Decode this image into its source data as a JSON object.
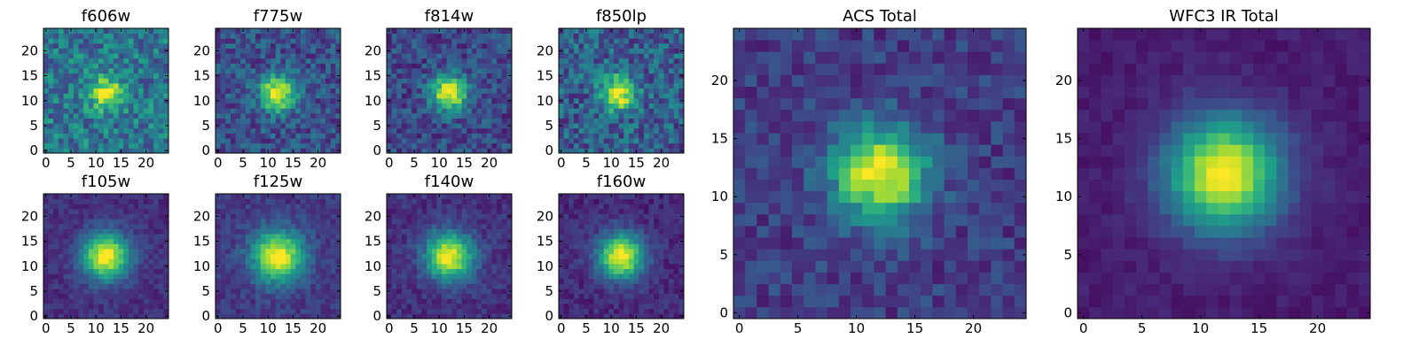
{
  "figure": {
    "description_free": true,
    "colormap": "viridis",
    "colormap_stops": [
      "#440154",
      "#482878",
      "#3e4989",
      "#31688e",
      "#26828e",
      "#1f9e89",
      "#35b779",
      "#6ece58",
      "#b5de2b",
      "#fde725"
    ]
  },
  "chart_data": [
    {
      "type": "heatmap",
      "title": "f606w",
      "grid_size": 25,
      "xlim": [
        0,
        24
      ],
      "ylim": [
        0,
        24
      ],
      "xticks": [
        "0",
        "5",
        "10",
        "15",
        "20"
      ],
      "yticks": [
        "0",
        "5",
        "10",
        "15",
        "20"
      ],
      "peak": [
        12,
        11.5
      ],
      "sigma": 2.3,
      "background": 0.4,
      "amplitude": 0.6,
      "noise": 0.2,
      "seed": 11
    },
    {
      "type": "heatmap",
      "title": "f775w",
      "grid_size": 25,
      "xlim": [
        0,
        24
      ],
      "ylim": [
        0,
        24
      ],
      "xticks": [
        "0",
        "5",
        "10",
        "15",
        "20"
      ],
      "yticks": [
        "0",
        "5",
        "10",
        "15",
        "20"
      ],
      "peak": [
        12,
        11.5
      ],
      "sigma": 2.5,
      "background": 0.25,
      "amplitude": 0.75,
      "noise": 0.16,
      "seed": 23
    },
    {
      "type": "heatmap",
      "title": "f814w",
      "grid_size": 25,
      "xlim": [
        0,
        24
      ],
      "ylim": [
        0,
        24
      ],
      "xticks": [
        "0",
        "5",
        "10",
        "15",
        "20"
      ],
      "yticks": [
        "0",
        "5",
        "10",
        "15",
        "20"
      ],
      "peak": [
        12,
        11.5
      ],
      "sigma": 2.5,
      "background": 0.22,
      "amplitude": 0.78,
      "noise": 0.15,
      "seed": 37
    },
    {
      "type": "heatmap",
      "title": "f850lp",
      "grid_size": 25,
      "xlim": [
        0,
        24
      ],
      "ylim": [
        0,
        24
      ],
      "xticks": [
        "0",
        "5",
        "10",
        "15",
        "20"
      ],
      "yticks": [
        "0",
        "5",
        "10",
        "15",
        "20"
      ],
      "peak": [
        11.5,
        11.5
      ],
      "sigma": 2.4,
      "background": 0.3,
      "amplitude": 0.7,
      "noise": 0.2,
      "seed": 41
    },
    {
      "type": "heatmap",
      "title": "f105w",
      "grid_size": 25,
      "xlim": [
        0,
        24
      ],
      "ylim": [
        0,
        24
      ],
      "xticks": [
        "0",
        "5",
        "10",
        "15",
        "20"
      ],
      "yticks": [
        "0",
        "5",
        "10",
        "15",
        "20"
      ],
      "peak": [
        12,
        12
      ],
      "sigma": 3.3,
      "background": 0.14,
      "amplitude": 0.86,
      "noise": 0.07,
      "seed": 53
    },
    {
      "type": "heatmap",
      "title": "f125w",
      "grid_size": 25,
      "xlim": [
        0,
        24
      ],
      "ylim": [
        0,
        24
      ],
      "xticks": [
        "0",
        "5",
        "10",
        "15",
        "20"
      ],
      "yticks": [
        "0",
        "5",
        "10",
        "15",
        "20"
      ],
      "peak": [
        12,
        12
      ],
      "sigma": 3.6,
      "background": 0.17,
      "amplitude": 0.83,
      "noise": 0.08,
      "seed": 67
    },
    {
      "type": "heatmap",
      "title": "f140w",
      "grid_size": 25,
      "xlim": [
        0,
        24
      ],
      "ylim": [
        0,
        24
      ],
      "xticks": [
        "0",
        "5",
        "10",
        "15",
        "20"
      ],
      "yticks": [
        "0",
        "5",
        "10",
        "15",
        "20"
      ],
      "peak": [
        12,
        12
      ],
      "sigma": 3.3,
      "background": 0.14,
      "amplitude": 0.86,
      "noise": 0.08,
      "seed": 79
    },
    {
      "type": "heatmap",
      "title": "f160w",
      "grid_size": 25,
      "xlim": [
        0,
        24
      ],
      "ylim": [
        0,
        24
      ],
      "xticks": [
        "0",
        "5",
        "10",
        "15",
        "20"
      ],
      "yticks": [
        "0",
        "5",
        "10",
        "15",
        "20"
      ],
      "peak": [
        12,
        12
      ],
      "sigma": 3.2,
      "background": 0.12,
      "amplitude": 0.88,
      "noise": 0.08,
      "seed": 83
    },
    {
      "type": "heatmap",
      "title": "ACS Total",
      "grid_size": 25,
      "xlim": [
        0,
        24
      ],
      "ylim": [
        0,
        24
      ],
      "xticks": [
        "0",
        "5",
        "10",
        "15",
        "20"
      ],
      "yticks": [
        "0",
        "5",
        "10",
        "15",
        "20"
      ],
      "peak": [
        12,
        12
      ],
      "sigma": 2.8,
      "background": 0.18,
      "amplitude": 0.82,
      "noise": 0.11,
      "seed": 97
    },
    {
      "type": "heatmap",
      "title": "WFC3 IR Total",
      "grid_size": 25,
      "xlim": [
        0,
        24
      ],
      "ylim": [
        0,
        24
      ],
      "xticks": [
        "0",
        "5",
        "10",
        "15",
        "20"
      ],
      "yticks": [
        "0",
        "5",
        "10",
        "15",
        "20"
      ],
      "peak": [
        12,
        12
      ],
      "sigma": 3.4,
      "background": 0.08,
      "amplitude": 0.92,
      "noise": 0.04,
      "seed": 101
    }
  ]
}
